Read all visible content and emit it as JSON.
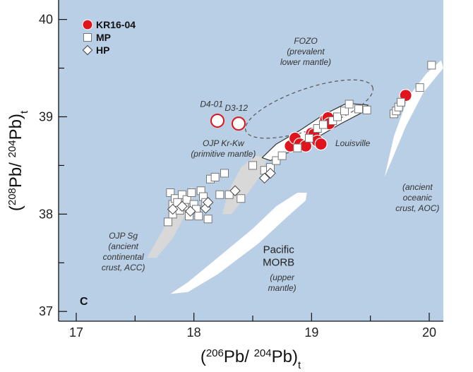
{
  "chart_data": {
    "type": "scatter",
    "xlabel_parts": [
      "(",
      "206",
      "Pb/ ",
      "204",
      "Pb)",
      "t"
    ],
    "ylabel_parts": [
      "(",
      "208",
      "Pb/ ",
      "204",
      "Pb)",
      "t"
    ],
    "xlim": [
      16.85,
      20.12
    ],
    "ylim": [
      36.9,
      40.2
    ],
    "xticks": [
      17,
      18,
      19,
      20
    ],
    "xtick_labels": [
      "17",
      "18",
      "19",
      "20"
    ],
    "yticks": [
      37,
      38,
      39,
      40
    ],
    "ytick_labels": [
      "37",
      "38",
      "39",
      "40"
    ],
    "panel_label": "C",
    "legend_position": "top-left",
    "colors": {
      "background": "#b9cfe6",
      "kr_fill": "#e0141c",
      "kr_stroke": "#ffffff",
      "open_red": "#e0141c",
      "gray_field": "#d8d8d8",
      "white_field": "#ffffff"
    },
    "series": [
      {
        "name": "KR16-04",
        "marker": "circle-filled",
        "points": [
          [
            18.82,
            38.7
          ],
          [
            18.86,
            38.78
          ],
          [
            18.9,
            38.72
          ],
          [
            18.95,
            38.7
          ],
          [
            19.0,
            38.83
          ],
          [
            19.02,
            38.82
          ],
          [
            19.05,
            38.75
          ],
          [
            19.08,
            38.72
          ],
          [
            19.12,
            38.97
          ],
          [
            19.14,
            38.99
          ],
          [
            19.15,
            38.93
          ],
          [
            19.8,
            39.22
          ]
        ]
      },
      {
        "name": "MP",
        "marker": "square-open",
        "points": [
          [
            17.78,
            37.92
          ],
          [
            17.8,
            38.22
          ],
          [
            17.82,
            38.1
          ],
          [
            17.84,
            38.16
          ],
          [
            17.82,
            38.0
          ],
          [
            17.86,
            38.12
          ],
          [
            17.88,
            38.04
          ],
          [
            17.9,
            38.2
          ],
          [
            17.92,
            38.08
          ],
          [
            17.94,
            38.15
          ],
          [
            17.96,
            37.98
          ],
          [
            17.98,
            38.22
          ],
          [
            18.0,
            38.1
          ],
          [
            18.02,
            38.05
          ],
          [
            18.04,
            37.98
          ],
          [
            18.06,
            38.24
          ],
          [
            18.08,
            38.18
          ],
          [
            18.1,
            38.12
          ],
          [
            18.12,
            37.95
          ],
          [
            18.14,
            38.36
          ],
          [
            18.18,
            38.38
          ],
          [
            18.22,
            38.2
          ],
          [
            18.26,
            38.42
          ],
          [
            18.3,
            38.2
          ],
          [
            18.4,
            38.16
          ],
          [
            18.5,
            38.5
          ],
          [
            18.6,
            38.45
          ],
          [
            18.65,
            38.48
          ],
          [
            18.7,
            38.55
          ],
          [
            18.75,
            38.6
          ],
          [
            18.88,
            38.68
          ],
          [
            18.98,
            38.78
          ],
          [
            19.05,
            38.88
          ],
          [
            19.1,
            38.92
          ],
          [
            19.18,
            38.96
          ],
          [
            19.22,
            39.0
          ],
          [
            19.28,
            39.06
          ],
          [
            19.32,
            39.13
          ],
          [
            19.4,
            39.08
          ],
          [
            19.47,
            39.07
          ],
          [
            19.7,
            39.03
          ],
          [
            19.72,
            39.06
          ],
          [
            19.74,
            39.1
          ],
          [
            19.76,
            39.15
          ],
          [
            19.92,
            39.3
          ],
          [
            20.02,
            39.53
          ]
        ]
      },
      {
        "name": "HP",
        "marker": "diamond-open",
        "points": [
          [
            17.82,
            38.05
          ],
          [
            17.9,
            38.08
          ],
          [
            17.97,
            38.03
          ],
          [
            18.1,
            38.06
          ],
          [
            18.12,
            38.12
          ],
          [
            18.35,
            38.24
          ],
          [
            18.6,
            38.37
          ],
          [
            18.65,
            38.42
          ]
        ]
      },
      {
        "name": "",
        "marker": "circle-open-red",
        "points": [
          [
            18.2,
            38.96
          ],
          [
            18.38,
            38.93
          ]
        ]
      }
    ],
    "annotations": [
      {
        "label": "D4-01",
        "text": [
          "D4-01"
        ],
        "x": 18.15,
        "y": 39.1
      },
      {
        "label": "D3-12",
        "text": [
          "D3-12"
        ],
        "x": 18.36,
        "y": 39.06
      },
      {
        "label": "FOZO",
        "text": [
          "FOZO",
          "(prevalent",
          "lower mantle)"
        ],
        "x": 18.95,
        "y": 39.75
      },
      {
        "label": "OJP Kr-Kw",
        "text": [
          "OJP Kr-Kw",
          "(primitive mantle)"
        ],
        "x": 18.25,
        "y": 38.7
      },
      {
        "label": "Louisville",
        "text": [
          "Louisville"
        ],
        "x": 19.35,
        "y": 38.7
      },
      {
        "label": "OJP Sg",
        "text": [
          "OJP Sg",
          "(ancient",
          "continental",
          "crust, ACC)"
        ],
        "x": 17.4,
        "y": 37.75
      },
      {
        "label": "Pacific MORB",
        "text": [
          "Pacific",
          "MORB"
        ],
        "x": 18.72,
        "y": 37.6
      },
      {
        "label": "upper mantle",
        "text": [
          "(upper",
          "mantle)"
        ],
        "x": 18.75,
        "y": 37.32
      },
      {
        "label": "AOC",
        "text": [
          "(ancient",
          "oceanic",
          "crust, AOC)"
        ],
        "x": 19.9,
        "y": 38.25
      }
    ]
  }
}
